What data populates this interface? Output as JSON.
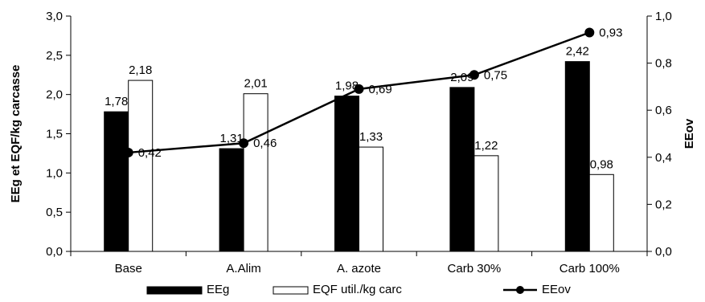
{
  "chart_data": {
    "type": "bar",
    "categories": [
      "Base",
      "A.Alim",
      "A. azote",
      "Carb 30%",
      "Carb 100%"
    ],
    "series": [
      {
        "name": "EEg",
        "type": "bar",
        "axis": "left",
        "color": "#000000",
        "values": [
          1.78,
          1.31,
          1.98,
          2.09,
          2.42
        ],
        "labels": [
          "1,78",
          "1,31",
          "1,98",
          "2,09",
          "2,42"
        ]
      },
      {
        "name": "EQF util./kg carc",
        "type": "bar",
        "axis": "left",
        "color": "#ffffff",
        "values": [
          2.18,
          2.01,
          1.33,
          1.22,
          0.98
        ],
        "labels": [
          "2,18",
          "2,01",
          "1,33",
          "1,22",
          "0,98"
        ]
      },
      {
        "name": "EEov",
        "type": "line",
        "axis": "right",
        "color": "#000000",
        "values": [
          0.42,
          0.46,
          0.69,
          0.75,
          0.93
        ],
        "labels": [
          "0,42",
          "0,46",
          "0,69",
          "0,75",
          "0,93"
        ]
      }
    ],
    "ylabel": "EEg et EQF/kg carcasse",
    "y2label": "EEov",
    "ylim": [
      0,
      3
    ],
    "y2lim": [
      0,
      1
    ],
    "yticks": [
      "0,0",
      "0,5",
      "1,0",
      "1,5",
      "2,0",
      "2,5",
      "3,0"
    ],
    "y2ticks": [
      "0,0",
      "0,2",
      "0,4",
      "0,6",
      "0,8",
      "1,0"
    ],
    "grid": false,
    "legend_position": "bottom"
  }
}
